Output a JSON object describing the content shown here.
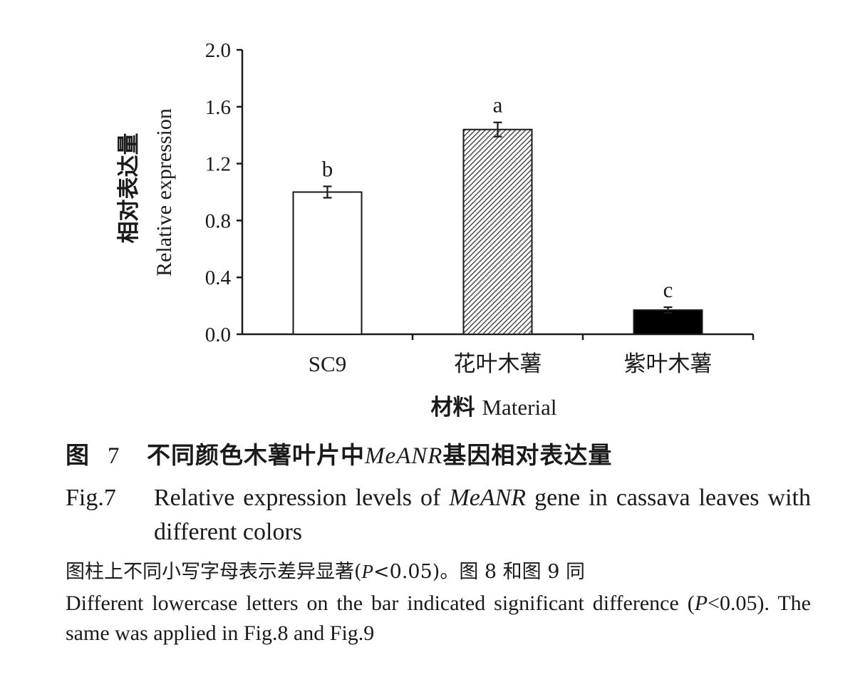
{
  "chart_data": {
    "type": "bar",
    "categories": [
      "SC9",
      "花叶木薯",
      "紫叶木薯"
    ],
    "values": [
      1.0,
      1.44,
      0.17
    ],
    "errors": [
      0.04,
      0.05,
      0.02
    ],
    "significance": [
      "b",
      "a",
      "c"
    ],
    "bar_fill": [
      "white",
      "hatched",
      "black"
    ],
    "ylim": [
      0.0,
      2.0
    ],
    "yticks": [
      "0.0",
      "0.4",
      "0.8",
      "1.2",
      "1.6",
      "2.0"
    ],
    "ylabel_cn": "相对表达量",
    "ylabel_en": "Relative expression",
    "xlabel_cn": "材料",
    "xlabel_en": "Material",
    "grid": false,
    "colors": {
      "axis": "#1a1a1a",
      "bar_edge": "#1a1a1a",
      "black_bar": "#000000",
      "white_bar": "#ffffff"
    }
  },
  "caption": {
    "cn_prefix": "图",
    "cn_number": "7",
    "cn_text_before": "不同颜色木薯叶片中",
    "cn_gene": "MeANR",
    "cn_text_after": "基因相对表达量",
    "en_fig": "Fig.7",
    "en_text_before": "Relative expression levels of ",
    "en_gene": "MeANR",
    "en_text_after": " gene in cassava leaves with different colors"
  },
  "note": {
    "cn_before": "图柱上不同小写字母表示差异显著(",
    "cn_p": "P",
    "cn_after": "<0.05)。图 8 和图 9 同",
    "en_before": "Different lowercase letters on the bar indicated significant difference (",
    "en_p": "P",
    "en_after": "<0.05). The same was applied in Fig.8 and Fig.9"
  }
}
